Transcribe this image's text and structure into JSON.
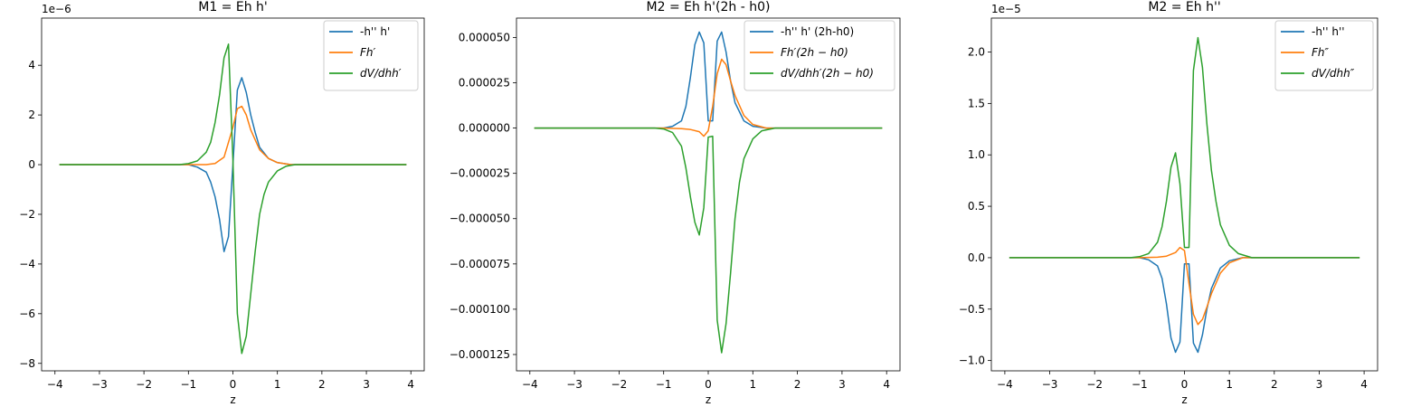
{
  "chart_data": [
    {
      "type": "line",
      "title": "M1 = Eh h'",
      "xlabel": "z",
      "ylabel": "",
      "xlim": [
        -4.3,
        4.3
      ],
      "ylim": [
        -8.3,
        5.9
      ],
      "y_scale": 1e-06,
      "offset_label": "1e−6",
      "xticks": [
        -4,
        -3,
        -2,
        -1,
        0,
        1,
        2,
        3,
        4
      ],
      "xtick_labels": [
        "−4",
        "−3",
        "−2",
        "−1",
        "0",
        "1",
        "2",
        "3",
        "4"
      ],
      "yticks": [
        4,
        2,
        0,
        -2,
        -4,
        -6,
        -8
      ],
      "ytick_labels": [
        "4",
        "2",
        "0",
        "−2",
        "−4",
        "−6",
        "−8"
      ],
      "legend_position": "upper right",
      "series": [
        {
          "name": "-h'' h'",
          "italic": false,
          "color": "#1f77b4",
          "x": [
            -3.9,
            -1.0,
            -0.8,
            -0.6,
            -0.5,
            -0.4,
            -0.3,
            -0.2,
            -0.1,
            0.0,
            0.1,
            0.2,
            0.3,
            0.4,
            0.5,
            0.6,
            0.8,
            1.0,
            1.3,
            3.9
          ],
          "values": [
            0,
            0,
            -0.1,
            -0.3,
            -0.7,
            -1.3,
            -2.2,
            -3.5,
            -2.9,
            0.0,
            3.0,
            3.5,
            2.9,
            2.0,
            1.3,
            0.7,
            0.25,
            0.08,
            0.0,
            0
          ]
        },
        {
          "name": "Fh′",
          "italic": true,
          "color": "#ff7f0e",
          "x": [
            -3.9,
            -0.6,
            -0.4,
            -0.2,
            0.0,
            0.1,
            0.2,
            0.3,
            0.4,
            0.6,
            0.8,
            1.0,
            1.3,
            3.9
          ],
          "values": [
            0,
            0,
            0.05,
            0.3,
            1.5,
            2.25,
            2.35,
            2.0,
            1.4,
            0.6,
            0.25,
            0.08,
            0.0,
            0
          ]
        },
        {
          "name": "dV/dhh′",
          "italic": true,
          "color": "#2ca02c",
          "x": [
            -3.9,
            -1.2,
            -1.0,
            -0.8,
            -0.6,
            -0.5,
            -0.4,
            -0.3,
            -0.2,
            -0.1,
            0.0,
            0.1,
            0.2,
            0.3,
            0.4,
            0.5,
            0.6,
            0.7,
            0.8,
            1.0,
            1.2,
            1.4,
            3.9
          ],
          "values": [
            0,
            0,
            0.04,
            0.15,
            0.5,
            0.9,
            1.7,
            2.8,
            4.3,
            4.85,
            0.2,
            -6.0,
            -7.6,
            -6.9,
            -5.2,
            -3.5,
            -2.0,
            -1.2,
            -0.7,
            -0.25,
            -0.06,
            0.0,
            0
          ]
        }
      ]
    },
    {
      "type": "line",
      "title": "M2 = Eh h'(2h - h0)",
      "xlabel": "z",
      "ylabel": "",
      "xlim": [
        -4.3,
        4.3
      ],
      "ylim": [
        -0.000134,
        6.07e-05
      ],
      "y_scale": 1,
      "offset_label": "",
      "xticks": [
        -4,
        -3,
        -2,
        -1,
        0,
        1,
        2,
        3,
        4
      ],
      "xtick_labels": [
        "−4",
        "−3",
        "−2",
        "−1",
        "0",
        "1",
        "2",
        "3",
        "4"
      ],
      "yticks": [
        5e-05,
        2.5e-05,
        0,
        -2.5e-05,
        -5e-05,
        -7.5e-05,
        -0.0001,
        -0.000125
      ],
      "ytick_labels": [
        "0.000050",
        "0.000025",
        "0.000000",
        "−0.000025",
        "−0.000050",
        "−0.000075",
        "−0.000100",
        "−0.000125"
      ],
      "legend_position": "upper right",
      "series": [
        {
          "name": "-h'' h' (2h-h0)",
          "italic": false,
          "color": "#1f77b4",
          "x": [
            -3.9,
            -1.0,
            -0.8,
            -0.6,
            -0.5,
            -0.4,
            -0.3,
            -0.2,
            -0.1,
            0.0,
            0.1,
            0.2,
            0.3,
            0.4,
            0.5,
            0.6,
            0.8,
            1.0,
            1.3,
            3.9
          ],
          "values": [
            0,
            0,
            1e-06,
            4e-06,
            1.2e-05,
            2.8e-05,
            4.6e-05,
            5.3e-05,
            4.7e-05,
            4e-06,
            4e-06,
            4.8e-05,
            5.3e-05,
            4.2e-05,
            2.6e-05,
            1.4e-05,
            4e-06,
            1e-06,
            0,
            0
          ]
        },
        {
          "name": "Fh′(2h − h0)",
          "italic": true,
          "color": "#ff7f0e",
          "x": [
            -3.9,
            -1.0,
            -0.6,
            -0.4,
            -0.2,
            -0.1,
            0.0,
            0.1,
            0.2,
            0.3,
            0.4,
            0.5,
            0.6,
            0.8,
            1.0,
            1.3,
            3.9
          ],
          "values": [
            0,
            0,
            -3e-07,
            -8e-07,
            -2e-06,
            -4.5e-06,
            -1.5e-06,
            1.2e-05,
            3e-05,
            3.8e-05,
            3.5e-05,
            2.6e-05,
            1.8e-05,
            7e-06,
            2e-06,
            0,
            0
          ]
        },
        {
          "name": "dV/dhh′(2h − h0)",
          "italic": true,
          "color": "#2ca02c",
          "x": [
            -3.9,
            -1.2,
            -1.0,
            -0.8,
            -0.6,
            -0.5,
            -0.4,
            -0.3,
            -0.2,
            -0.1,
            0.0,
            0.1,
            0.2,
            0.3,
            0.4,
            0.5,
            0.6,
            0.7,
            0.8,
            1.0,
            1.2,
            1.5,
            3.9
          ],
          "values": [
            0,
            0,
            -5e-07,
            -2.5e-06,
            -1e-05,
            -2.2e-05,
            -3.8e-05,
            -5.2e-05,
            -5.9e-05,
            -4.4e-05,
            -5e-06,
            -4.5e-06,
            -0.000106,
            -0.000124,
            -0.000108,
            -8e-05,
            -5e-05,
            -3e-05,
            -1.7e-05,
            -6e-06,
            -1.5e-06,
            0,
            0
          ]
        }
      ]
    },
    {
      "type": "line",
      "title": "M2 = Eh h''",
      "xlabel": "z",
      "ylabel": "",
      "xlim": [
        -4.3,
        4.3
      ],
      "ylim": [
        -1.1,
        2.33
      ],
      "y_scale": 1e-05,
      "offset_label": "1e−5",
      "xticks": [
        -4,
        -3,
        -2,
        -1,
        0,
        1,
        2,
        3,
        4
      ],
      "xtick_labels": [
        "−4",
        "−3",
        "−2",
        "−1",
        "0",
        "1",
        "2",
        "3",
        "4"
      ],
      "yticks": [
        2.0,
        1.5,
        1.0,
        0.5,
        0.0,
        -0.5,
        -1.0
      ],
      "ytick_labels": [
        "2.0",
        "1.5",
        "1.0",
        "0.5",
        "0.0",
        "−0.5",
        "−1.0"
      ],
      "legend_position": "upper right",
      "series": [
        {
          "name": "-h'' h''",
          "italic": false,
          "color": "#1f77b4",
          "x": [
            -3.9,
            -1.0,
            -0.8,
            -0.6,
            -0.5,
            -0.4,
            -0.3,
            -0.2,
            -0.1,
            0.0,
            0.1,
            0.2,
            0.3,
            0.4,
            0.5,
            0.6,
            0.8,
            1.0,
            1.3,
            3.9
          ],
          "values": [
            0,
            0,
            -0.02,
            -0.08,
            -0.2,
            -0.45,
            -0.78,
            -0.92,
            -0.82,
            -0.06,
            -0.06,
            -0.83,
            -0.92,
            -0.75,
            -0.5,
            -0.3,
            -0.1,
            -0.03,
            0,
            0
          ]
        },
        {
          "name": "Fh″",
          "italic": true,
          "color": "#ff7f0e",
          "x": [
            -3.9,
            -1.0,
            -0.6,
            -0.4,
            -0.2,
            -0.1,
            0.0,
            0.1,
            0.2,
            0.3,
            0.4,
            0.5,
            0.6,
            0.8,
            1.0,
            1.3,
            3.9
          ],
          "values": [
            0,
            0,
            0.005,
            0.015,
            0.05,
            0.1,
            0.07,
            -0.25,
            -0.55,
            -0.65,
            -0.6,
            -0.48,
            -0.35,
            -0.15,
            -0.05,
            0,
            0
          ]
        },
        {
          "name": "dV/dhh″",
          "italic": true,
          "color": "#2ca02c",
          "x": [
            -3.9,
            -1.2,
            -1.0,
            -0.8,
            -0.6,
            -0.5,
            -0.4,
            -0.3,
            -0.2,
            -0.1,
            0.0,
            0.1,
            0.2,
            0.3,
            0.4,
            0.5,
            0.6,
            0.7,
            0.8,
            1.0,
            1.2,
            1.5,
            3.9
          ],
          "values": [
            0,
            0,
            0.01,
            0.04,
            0.15,
            0.3,
            0.55,
            0.88,
            1.02,
            0.72,
            0.1,
            0.1,
            1.82,
            2.14,
            1.85,
            1.3,
            0.85,
            0.55,
            0.32,
            0.12,
            0.04,
            0,
            0
          ]
        }
      ]
    }
  ]
}
